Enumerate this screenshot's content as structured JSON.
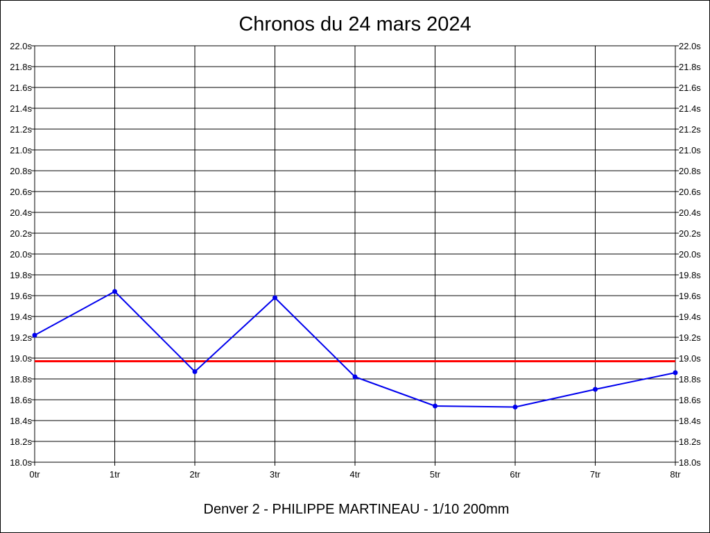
{
  "chart_data": {
    "type": "line",
    "title": "Chronos du 24 mars 2024",
    "subtitle": "Denver 2 - PHILIPPE MARTINEAU - 1/10 200mm",
    "x": [
      0,
      1,
      2,
      3,
      4,
      5,
      6,
      7,
      8
    ],
    "x_tick_labels": [
      "0tr",
      "1tr",
      "2tr",
      "3tr",
      "4tr",
      "5tr",
      "6tr",
      "7tr",
      "8tr"
    ],
    "xlim": [
      0,
      8
    ],
    "ylim": [
      18.0,
      22.0
    ],
    "y_ticks": [
      18.0,
      18.2,
      18.4,
      18.6,
      18.8,
      19.0,
      19.2,
      19.4,
      19.6,
      19.8,
      20.0,
      20.2,
      20.4,
      20.6,
      20.8,
      21.0,
      21.2,
      21.4,
      21.6,
      21.8,
      22.0
    ],
    "y_tick_labels": [
      "18.0s",
      "18.2s",
      "18.4s",
      "18.6s",
      "18.8s",
      "19.0s",
      "19.2s",
      "19.4s",
      "19.6s",
      "19.8s",
      "20.0s",
      "20.2s",
      "20.4s",
      "20.6s",
      "20.8s",
      "21.0s",
      "21.2s",
      "21.4s",
      "21.6s",
      "21.8s",
      "22.0s"
    ],
    "y_axes": "left and right",
    "grid": true,
    "series": [
      {
        "values": [
          19.22,
          19.64,
          18.87,
          19.58,
          18.82,
          18.54,
          18.53,
          18.7,
          18.86
        ],
        "color": "#0000ee"
      }
    ],
    "reference_line": {
      "value": 18.97,
      "color": "#ff0000"
    }
  }
}
